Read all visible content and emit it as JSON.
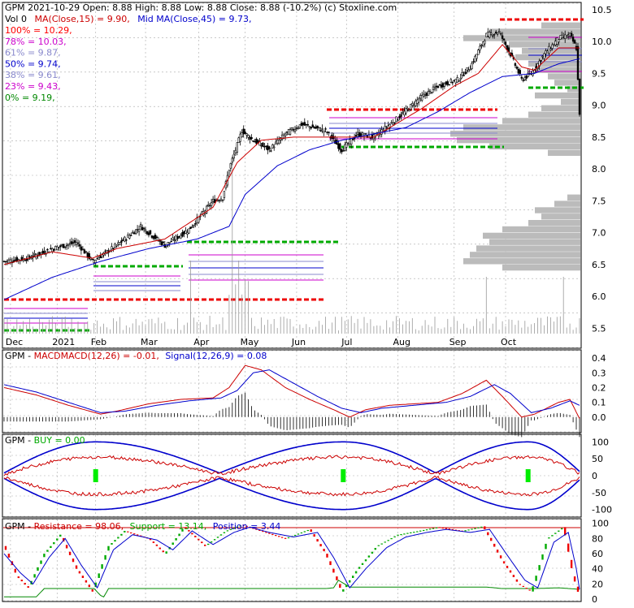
{
  "header": {
    "line1": "GPM  2021-10-29 Open: 8.88  High: 8.88  Low: 8.88  Close: 8.88  (-10.2%)  (c) Stoxline.com",
    "vol": "Vol 0",
    "ma15": "MA(Close,15) = 9.90,",
    "ma45": "Mid MA(Close,45) = 9.73,"
  },
  "fib_levels": [
    {
      "label": "100% = 10.29,",
      "value": 10.29,
      "color": "#ff0000"
    },
    {
      "label": "78% = 10.03,",
      "value": 10.03,
      "color": "#cc00cc"
    },
    {
      "label": "61% = 9.87,",
      "value": 9.87,
      "color": "#8888cc"
    },
    {
      "label": "50% = 9.74,",
      "value": 9.74,
      "color": "#0000cc"
    },
    {
      "label": "38% = 9.61,",
      "value": 9.61,
      "color": "#8888cc"
    },
    {
      "label": "23% = 9.43,",
      "value": 9.43,
      "color": "#cc00cc"
    },
    {
      "label": "0% = 9.19,",
      "value": 9.19,
      "color": "#008800"
    }
  ],
  "colors": {
    "up": "#000000",
    "ma15": "#cc0000",
    "ma45": "#0000cc",
    "grid": "#999999",
    "volprofile": "#bbbbbb",
    "green": "#00cc00"
  },
  "chart_data": [
    {
      "type": "candlestick",
      "ylim": [
        5.2,
        10.6
      ],
      "y_ticks": [
        "10.5",
        "10.0",
        "9.5",
        "9.0",
        "8.5",
        "8.0",
        "7.5",
        "7.0",
        "6.5",
        "6.0",
        "5.5"
      ],
      "x_ticks": [
        "Dec",
        "2021",
        "Feb",
        "Mar",
        "Apr",
        "May",
        "Jun",
        "Jul",
        "Aug",
        "Sep",
        "Oct"
      ],
      "close_anchors": [
        [
          0,
          6.55
        ],
        [
          15,
          6.6
        ],
        [
          30,
          6.75
        ],
        [
          45,
          6.85
        ],
        [
          55,
          6.55
        ],
        [
          70,
          6.8
        ],
        [
          85,
          7.1
        ],
        [
          100,
          6.8
        ],
        [
          115,
          7.05
        ],
        [
          130,
          7.5
        ],
        [
          136,
          7.55
        ],
        [
          140,
          8.0
        ],
        [
          148,
          8.6
        ],
        [
          155,
          8.45
        ],
        [
          165,
          8.3
        ],
        [
          175,
          8.55
        ],
        [
          185,
          8.7
        ],
        [
          200,
          8.6
        ],
        [
          210,
          8.3
        ],
        [
          220,
          8.55
        ],
        [
          230,
          8.5
        ],
        [
          245,
          8.8
        ],
        [
          258,
          9.1
        ],
        [
          270,
          9.3
        ],
        [
          282,
          9.4
        ],
        [
          290,
          9.6
        ],
        [
          300,
          10.1
        ],
        [
          308,
          10.15
        ],
        [
          315,
          9.8
        ],
        [
          322,
          9.4
        ],
        [
          328,
          9.5
        ],
        [
          336,
          9.8
        ],
        [
          345,
          10.05
        ],
        [
          352,
          10.1
        ],
        [
          356,
          9.9
        ],
        [
          358,
          8.88
        ]
      ],
      "ma15_anchors": [
        [
          0,
          6.5
        ],
        [
          30,
          6.7
        ],
        [
          55,
          6.6
        ],
        [
          70,
          6.75
        ],
        [
          100,
          6.9
        ],
        [
          130,
          7.4
        ],
        [
          145,
          8.1
        ],
        [
          160,
          8.45
        ],
        [
          180,
          8.5
        ],
        [
          210,
          8.5
        ],
        [
          230,
          8.5
        ],
        [
          260,
          8.95
        ],
        [
          280,
          9.3
        ],
        [
          295,
          9.5
        ],
        [
          310,
          9.95
        ],
        [
          322,
          9.6
        ],
        [
          330,
          9.55
        ],
        [
          345,
          9.9
        ],
        [
          358,
          9.9
        ]
      ],
      "ma45_anchors": [
        [
          0,
          5.95
        ],
        [
          30,
          6.3
        ],
        [
          60,
          6.55
        ],
        [
          90,
          6.75
        ],
        [
          120,
          6.9
        ],
        [
          140,
          7.1
        ],
        [
          150,
          7.6
        ],
        [
          170,
          8.05
        ],
        [
          190,
          8.3
        ],
        [
          210,
          8.45
        ],
        [
          230,
          8.55
        ],
        [
          250,
          8.65
        ],
        [
          270,
          8.9
        ],
        [
          290,
          9.2
        ],
        [
          310,
          9.45
        ],
        [
          330,
          9.5
        ],
        [
          345,
          9.65
        ],
        [
          358,
          9.73
        ]
      ],
      "vol_profile_max_px": 160
    },
    {
      "type": "line",
      "name": "MACD",
      "label_prefix": "GPM - ",
      "label_macd": "MACDMACD(12,26) = -0.01,",
      "label_signal": "Signal(12,26,9) = 0.08",
      "ylim": [
        -0.1,
        0.45
      ],
      "y_ticks": [
        "0.4",
        "0.3",
        "0.2",
        "0.1",
        "0.0"
      ],
      "macd_anchors": [
        [
          0,
          0.2
        ],
        [
          20,
          0.15
        ],
        [
          40,
          0.08
        ],
        [
          60,
          0.02
        ],
        [
          70,
          0.04
        ],
        [
          90,
          0.09
        ],
        [
          110,
          0.12
        ],
        [
          130,
          0.13
        ],
        [
          140,
          0.2
        ],
        [
          150,
          0.35
        ],
        [
          160,
          0.32
        ],
        [
          175,
          0.2
        ],
        [
          190,
          0.12
        ],
        [
          205,
          0.05
        ],
        [
          215,
          0.0
        ],
        [
          225,
          0.05
        ],
        [
          240,
          0.08
        ],
        [
          255,
          0.09
        ],
        [
          270,
          0.1
        ],
        [
          285,
          0.16
        ],
        [
          300,
          0.25
        ],
        [
          310,
          0.14
        ],
        [
          322,
          0.0
        ],
        [
          330,
          0.02
        ],
        [
          345,
          0.1
        ],
        [
          352,
          0.12
        ],
        [
          358,
          -0.01
        ]
      ],
      "signal_anchors": [
        [
          0,
          0.22
        ],
        [
          20,
          0.17
        ],
        [
          40,
          0.1
        ],
        [
          60,
          0.03
        ],
        [
          75,
          0.04
        ],
        [
          95,
          0.08
        ],
        [
          115,
          0.11
        ],
        [
          135,
          0.13
        ],
        [
          145,
          0.18
        ],
        [
          155,
          0.3
        ],
        [
          165,
          0.32
        ],
        [
          180,
          0.23
        ],
        [
          195,
          0.14
        ],
        [
          210,
          0.06
        ],
        [
          222,
          0.03
        ],
        [
          235,
          0.06
        ],
        [
          255,
          0.08
        ],
        [
          275,
          0.1
        ],
        [
          290,
          0.14
        ],
        [
          305,
          0.22
        ],
        [
          315,
          0.16
        ],
        [
          328,
          0.03
        ],
        [
          340,
          0.06
        ],
        [
          352,
          0.11
        ],
        [
          358,
          0.08
        ]
      ]
    },
    {
      "type": "line",
      "name": "BUY",
      "label_prefix": "GPM - ",
      "label_buy": "BUY = 0.00",
      "ylim": [
        -120,
        120
      ],
      "y_ticks": [
        "100",
        "50",
        "0",
        "-50",
        "-100"
      ],
      "buy_markers": [
        57,
        211,
        326
      ]
    },
    {
      "type": "line",
      "name": "Resistance / Support",
      "label_prefix": "GPM - ",
      "label_res": "Resistance = 98.06,",
      "label_sup": "Support = 13.14,",
      "label_pos": "Position = 3.44",
      "ylim": [
        -2,
        105
      ],
      "y_ticks": [
        "100",
        "80",
        "60",
        "40",
        "20",
        "0"
      ],
      "k_anchors": [
        [
          0,
          70
        ],
        [
          8,
          30
        ],
        [
          15,
          15
        ],
        [
          25,
          60
        ],
        [
          35,
          85
        ],
        [
          45,
          40
        ],
        [
          55,
          10
        ],
        [
          65,
          70
        ],
        [
          75,
          90
        ],
        [
          90,
          80
        ],
        [
          100,
          60
        ],
        [
          112,
          95
        ],
        [
          125,
          70
        ],
        [
          138,
          90
        ],
        [
          148,
          98
        ],
        [
          160,
          90
        ],
        [
          175,
          80
        ],
        [
          190,
          92
        ],
        [
          200,
          60
        ],
        [
          210,
          10
        ],
        [
          220,
          40
        ],
        [
          232,
          70
        ],
        [
          245,
          85
        ],
        [
          258,
          90
        ],
        [
          270,
          95
        ],
        [
          285,
          90
        ],
        [
          298,
          96
        ],
        [
          310,
          50
        ],
        [
          320,
          20
        ],
        [
          328,
          10
        ],
        [
          338,
          80
        ],
        [
          348,
          95
        ],
        [
          354,
          30
        ],
        [
          358,
          3
        ]
      ],
      "d_anchors": [
        [
          0,
          60
        ],
        [
          10,
          35
        ],
        [
          18,
          20
        ],
        [
          28,
          55
        ],
        [
          38,
          80
        ],
        [
          48,
          45
        ],
        [
          58,
          15
        ],
        [
          68,
          65
        ],
        [
          80,
          85
        ],
        [
          95,
          78
        ],
        [
          105,
          65
        ],
        [
          117,
          90
        ],
        [
          130,
          72
        ],
        [
          143,
          88
        ],
        [
          153,
          95
        ],
        [
          165,
          88
        ],
        [
          180,
          82
        ],
        [
          195,
          88
        ],
        [
          205,
          55
        ],
        [
          215,
          15
        ],
        [
          225,
          40
        ],
        [
          238,
          68
        ],
        [
          250,
          82
        ],
        [
          263,
          88
        ],
        [
          275,
          92
        ],
        [
          290,
          88
        ],
        [
          302,
          92
        ],
        [
          314,
          55
        ],
        [
          324,
          25
        ],
        [
          332,
          15
        ],
        [
          342,
          75
        ],
        [
          351,
          88
        ],
        [
          356,
          40
        ],
        [
          358,
          13
        ]
      ]
    }
  ]
}
